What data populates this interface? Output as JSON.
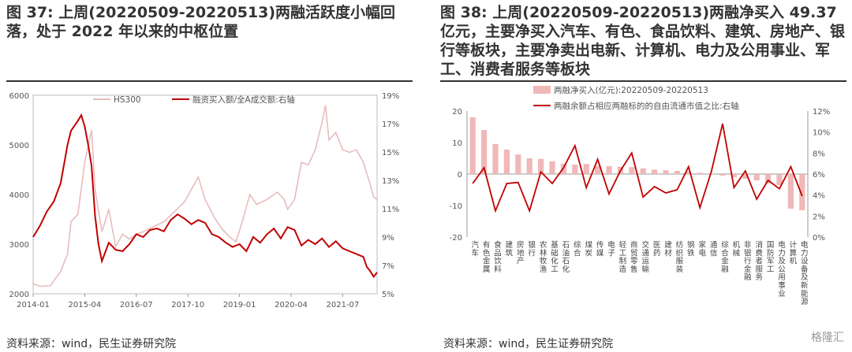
{
  "left": {
    "title": "图 37: 上周(20220509-20220513)两融活跃度小幅回落，处于 2022 年以来的中枢位置",
    "source": "资料来源：wind，民生证券研究院",
    "chart_data": {
      "type": "line",
      "x_ticks": [
        "2014-01",
        "2015-04",
        "2016-07",
        "2017-10",
        "2019-01",
        "2020-04",
        "2021-07"
      ],
      "xlim": [
        "2014-01",
        "2022-05"
      ],
      "y_left": {
        "ticks": [
          2000,
          3000,
          4000,
          5000,
          6000
        ],
        "lim": [
          2000,
          6000
        ]
      },
      "y_right": {
        "ticks": [
          "5%",
          "7%",
          "9%",
          "11%",
          "13%",
          "15%",
          "17%",
          "19%"
        ],
        "lim": [
          5,
          19
        ]
      },
      "series": [
        {
          "name": "HS300",
          "axis": "left",
          "color": "#e8bcbc",
          "points": [
            [
              "2014-01",
              2200
            ],
            [
              "2014-03",
              2150
            ],
            [
              "2014-06",
              2160
            ],
            [
              "2014-09",
              2450
            ],
            [
              "2014-11",
              2800
            ],
            [
              "2014-12",
              3450
            ],
            [
              "2015-02",
              3600
            ],
            [
              "2015-04",
              4650
            ],
            [
              "2015-06",
              5300
            ],
            [
              "2015-07",
              4100
            ],
            [
              "2015-09",
              3250
            ],
            [
              "2015-11",
              3700
            ],
            [
              "2016-01",
              2950
            ],
            [
              "2016-03",
              3200
            ],
            [
              "2016-05",
              3100
            ],
            [
              "2016-07",
              3200
            ],
            [
              "2016-09",
              3250
            ],
            [
              "2016-12",
              3350
            ],
            [
              "2017-03",
              3450
            ],
            [
              "2017-06",
              3650
            ],
            [
              "2017-09",
              3850
            ],
            [
              "2017-11",
              4100
            ],
            [
              "2018-01",
              4350
            ],
            [
              "2018-03",
              3900
            ],
            [
              "2018-06",
              3500
            ],
            [
              "2018-08",
              3300
            ],
            [
              "2018-10",
              3150
            ],
            [
              "2018-12",
              3050
            ],
            [
              "2019-02",
              3500
            ],
            [
              "2019-04",
              4000
            ],
            [
              "2019-06",
              3800
            ],
            [
              "2019-09",
              3900
            ],
            [
              "2019-12",
              4050
            ],
            [
              "2020-02",
              3900
            ],
            [
              "2020-03",
              3700
            ],
            [
              "2020-05",
              3900
            ],
            [
              "2020-07",
              4650
            ],
            [
              "2020-09",
              4600
            ],
            [
              "2020-11",
              4900
            ],
            [
              "2021-01",
              5450
            ],
            [
              "2021-02",
              5800
            ],
            [
              "2021-03",
              5100
            ],
            [
              "2021-05",
              5250
            ],
            [
              "2021-07",
              4900
            ],
            [
              "2021-09",
              4850
            ],
            [
              "2021-11",
              4900
            ],
            [
              "2022-01",
              4650
            ],
            [
              "2022-03",
              4200
            ],
            [
              "2022-04",
              3950
            ],
            [
              "2022-05",
              3900
            ]
          ]
        },
        {
          "name": "融资买入额/全A成交额:右轴",
          "axis": "right",
          "color": "#c00000",
          "points": [
            [
              "2014-01",
              9.0
            ],
            [
              "2014-03",
              9.8
            ],
            [
              "2014-05",
              10.8
            ],
            [
              "2014-07",
              11.5
            ],
            [
              "2014-09",
              12.8
            ],
            [
              "2014-11",
              15.5
            ],
            [
              "2014-12",
              16.5
            ],
            [
              "2015-02",
              17.2
            ],
            [
              "2015-03",
              17.6
            ],
            [
              "2015-04",
              16.8
            ],
            [
              "2015-05",
              15.5
            ],
            [
              "2015-06",
              14.0
            ],
            [
              "2015-07",
              10.5
            ],
            [
              "2015-08",
              8.5
            ],
            [
              "2015-09",
              7.3
            ],
            [
              "2015-11",
              8.6
            ],
            [
              "2016-01",
              8.1
            ],
            [
              "2016-03",
              8.0
            ],
            [
              "2016-05",
              8.5
            ],
            [
              "2016-07",
              9.2
            ],
            [
              "2016-09",
              9.0
            ],
            [
              "2016-11",
              9.5
            ],
            [
              "2017-01",
              9.6
            ],
            [
              "2017-03",
              9.4
            ],
            [
              "2017-05",
              10.2
            ],
            [
              "2017-07",
              10.6
            ],
            [
              "2017-09",
              10.3
            ],
            [
              "2017-11",
              9.9
            ],
            [
              "2018-01",
              10.2
            ],
            [
              "2018-03",
              10.0
            ],
            [
              "2018-05",
              9.2
            ],
            [
              "2018-07",
              9.0
            ],
            [
              "2018-09",
              8.6
            ],
            [
              "2018-11",
              8.3
            ],
            [
              "2019-01",
              8.5
            ],
            [
              "2019-03",
              8.0
            ],
            [
              "2019-05",
              9.0
            ],
            [
              "2019-07",
              8.6
            ],
            [
              "2019-09",
              9.2
            ],
            [
              "2019-11",
              9.6
            ],
            [
              "2020-01",
              8.9
            ],
            [
              "2020-03",
              9.7
            ],
            [
              "2020-05",
              9.5
            ],
            [
              "2020-07",
              8.4
            ],
            [
              "2020-09",
              8.8
            ],
            [
              "2020-11",
              8.5
            ],
            [
              "2021-01",
              8.9
            ],
            [
              "2021-03",
              8.3
            ],
            [
              "2021-05",
              8.7
            ],
            [
              "2021-07",
              8.2
            ],
            [
              "2021-09",
              8.0
            ],
            [
              "2021-11",
              7.8
            ],
            [
              "2022-01",
              7.6
            ],
            [
              "2022-02",
              6.9
            ],
            [
              "2022-03",
              6.6
            ],
            [
              "2022-04",
              6.2
            ],
            [
              "2022-05",
              6.5
            ]
          ]
        }
      ]
    }
  },
  "right": {
    "title": "图 38: 上周(20220509-20220513)两融净买入 49.37 亿元，主要净买入汽车、有色、食品饮料、建筑、房地产、银行等板块，主要净卖出电新、计算机、电力及公用事业、军工、消费者服务等板块",
    "source": "资料来源：wind，民生证券研究院",
    "watermark": "格隆汇",
    "chart_data": {
      "type": "bar",
      "categories": [
        "汽车",
        "有色金属",
        "食品饮料",
        "建筑",
        "房地产",
        "银行",
        "农林牧渔",
        "基础化工",
        "石油石化",
        "综合",
        "煤炭",
        "传媒",
        "电子",
        "轻工制造",
        "商贸零售",
        "交通运输",
        "医药",
        "建材",
        "纺织服装",
        "钢铁",
        "家电",
        "通信",
        "综合金融",
        "机械",
        "非银行金融",
        "消费者服务",
        "国防军工",
        "电力及公用事业",
        "计算机",
        "电力设备及新能源"
      ],
      "y_left": {
        "ticks": [
          -20,
          -10,
          0,
          10,
          20
        ],
        "lim": [
          -20,
          20
        ]
      },
      "y_right": {
        "ticks": [
          "0%",
          "2%",
          "4%",
          "6%",
          "8%",
          "10%",
          "12%"
        ],
        "lim": [
          0,
          12
        ]
      },
      "series": [
        {
          "name": "两融净买入(亿元):20220509-20220513",
          "type": "bar",
          "axis": "left",
          "color": "#f0b8b8",
          "values": [
            18.0,
            14.0,
            9.5,
            7.8,
            6.2,
            5.0,
            4.8,
            4.0,
            3.3,
            3.0,
            3.2,
            2.6,
            2.5,
            2.3,
            2.2,
            1.8,
            1.4,
            1.2,
            1.0,
            0.8,
            0.4,
            0.2,
            -0.5,
            -1.0,
            -1.5,
            -2.0,
            -3.0,
            -3.5,
            -11.0,
            -11.5
          ]
        },
        {
          "name": "两融余额占相应两融标的的自由流通市值之比:右轴",
          "type": "line",
          "axis": "right",
          "color": "#c00000",
          "values": [
            5.1,
            6.6,
            2.5,
            5.1,
            5.2,
            2.5,
            6.2,
            5.1,
            6.6,
            8.7,
            4.7,
            7.4,
            4.1,
            6.3,
            8.0,
            3.8,
            4.8,
            4.2,
            4.5,
            6.7,
            2.8,
            6.2,
            10.8,
            4.7,
            6.3,
            3.6,
            5.4,
            4.6,
            6.7,
            3.9
          ]
        }
      ]
    }
  }
}
